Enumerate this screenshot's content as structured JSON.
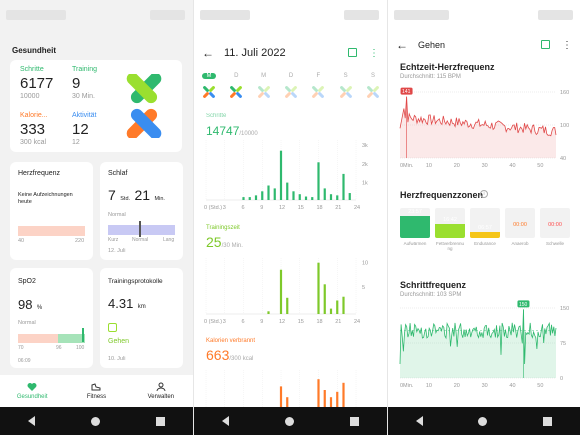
{
  "p1": {
    "title": "Gesundheit",
    "steps": {
      "label": "Schritte",
      "value": "6177",
      "goal": "10000"
    },
    "training": {
      "label": "Training",
      "value": "9",
      "goal": "30 Min."
    },
    "calories": {
      "label": "Kalorie...",
      "value": "333",
      "goal": "300 kcal"
    },
    "activity": {
      "label": "Aktivität",
      "value": "12",
      "goal": "12"
    },
    "heart": {
      "title": "Herzfrequenz",
      "note": "Keine Aufzeichnungen heute",
      "min": "40",
      "max": "220"
    },
    "sleep": {
      "title": "Schlaf",
      "hours": "7",
      "hours_unit": "Std.",
      "minutes": "21",
      "minutes_unit": "Min.",
      "status": "Normal",
      "scale": [
        "Kurz",
        "Normal",
        "Lang"
      ],
      "date": "12. Juli"
    },
    "spo2": {
      "title": "SpO2",
      "value": "98",
      "unit": "%",
      "status": "Normal",
      "scale": [
        "70",
        "96",
        "100"
      ],
      "time": "06:09"
    },
    "protocol": {
      "title": "Trainingsprotokolle",
      "value": "4.31",
      "unit": "km",
      "activity": "Gehen",
      "date": "10. Juli"
    },
    "tabs": [
      {
        "label": "Gesundheit",
        "icon": "heart-icon"
      },
      {
        "label": "Fitness",
        "icon": "shoe-icon"
      },
      {
        "label": "Verwalten",
        "icon": "person-icon"
      }
    ],
    "accent": "#2fb96e"
  },
  "p2": {
    "date": "11. Juli 2022",
    "weekdays": [
      "M",
      "D",
      "M",
      "D",
      "F",
      "S",
      "S"
    ],
    "steps": {
      "label": "Schritte",
      "value": "14747",
      "goal": "/10000"
    },
    "training": {
      "label": "Trainingszeit",
      "value": "25",
      "goal": "/30 Min."
    },
    "calories": {
      "label": "Kalorien verbrannt",
      "value": "663",
      "goal": "/300 kcal"
    },
    "x_ticks": [
      "0 (Std.)",
      "3",
      "6",
      "9",
      "12",
      "15",
      "18",
      "21",
      "24"
    ]
  },
  "p3": {
    "title": "Gehen",
    "hr_title": "Echtzeit-Herzfrequenz",
    "hr_avg": "Durchschnitt: 115 BPM",
    "hr_peak": "141",
    "hr_y": [
      "160",
      "100",
      "40"
    ],
    "hr_x": [
      "0Min.",
      "10",
      "20",
      "30",
      "40",
      "50"
    ],
    "zones_title": "Herzfrequenzzonen",
    "zones": [
      {
        "time": "23:57",
        "label": "Aufwärmen",
        "color": "#2fb96e"
      },
      {
        "time": "16:42",
        "label": "Fettverbrennung",
        "color": "#9adf2f"
      },
      {
        "time": "06:57",
        "label": "Endurance",
        "color": "#f5c518"
      },
      {
        "time": "00:00",
        "label": "Anaerob",
        "color": "#ff7a29"
      },
      {
        "time": "00:00",
        "label": "Schwelle",
        "color": "#ff4d4d"
      }
    ],
    "cad_title": "Schrittfrequenz",
    "cad_avg": "Durchschnitt: 103 SPM",
    "cad_peak": "150",
    "cad_y": [
      "150",
      "75",
      "0"
    ],
    "cad_x": [
      "0Min.",
      "10",
      "20",
      "30",
      "40",
      "50"
    ]
  }
}
